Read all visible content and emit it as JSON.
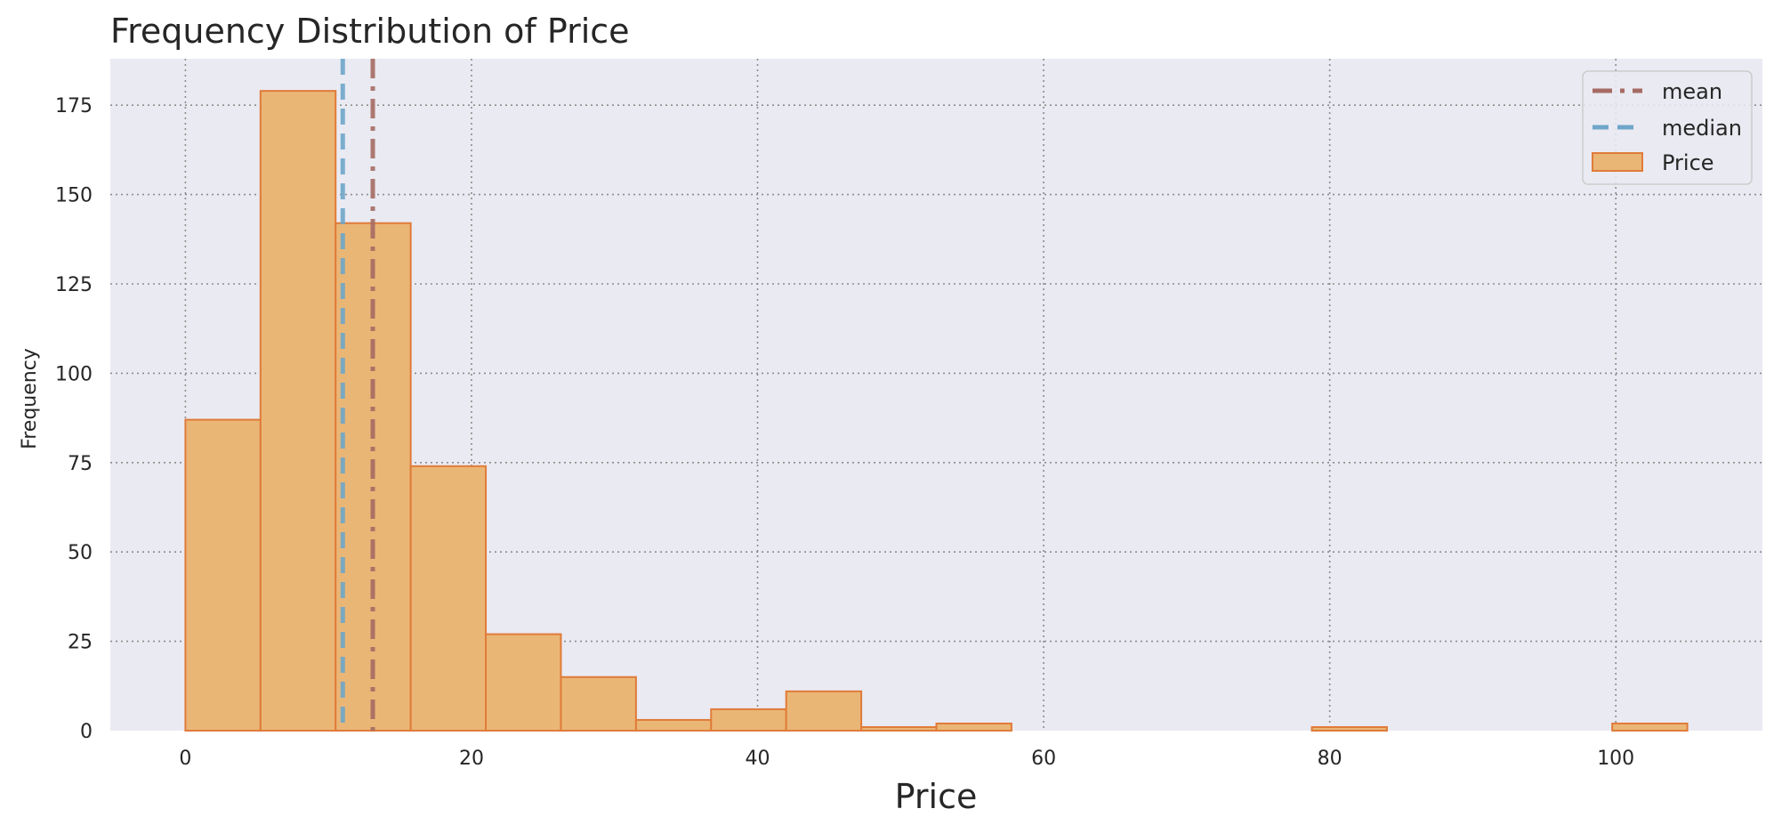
{
  "chart_data": {
    "type": "bar",
    "title": "Frequency Distribution of Price",
    "xlabel": "Price",
    "ylabel": "Frequency",
    "xlim": [
      -5.25,
      110.25
    ],
    "ylim": [
      0,
      188
    ],
    "xticks": [
      0,
      20,
      40,
      60,
      80,
      100
    ],
    "yticks": [
      0,
      25,
      50,
      75,
      100,
      125,
      150,
      175
    ],
    "grid": true,
    "grid_style": "dotted",
    "legend_position": "top-right",
    "bins": [
      {
        "x0": 0.0,
        "x1": 5.25,
        "count": 87
      },
      {
        "x0": 5.25,
        "x1": 10.5,
        "count": 179
      },
      {
        "x0": 10.5,
        "x1": 15.75,
        "count": 142
      },
      {
        "x0": 15.75,
        "x1": 21.0,
        "count": 74
      },
      {
        "x0": 21.0,
        "x1": 26.25,
        "count": 27
      },
      {
        "x0": 26.25,
        "x1": 31.5,
        "count": 15
      },
      {
        "x0": 31.5,
        "x1": 36.75,
        "count": 3
      },
      {
        "x0": 36.75,
        "x1": 42.0,
        "count": 6
      },
      {
        "x0": 42.0,
        "x1": 47.25,
        "count": 11
      },
      {
        "x0": 47.25,
        "x1": 52.5,
        "count": 1
      },
      {
        "x0": 52.5,
        "x1": 57.75,
        "count": 2
      },
      {
        "x0": 57.75,
        "x1": 63.0,
        "count": 0
      },
      {
        "x0": 63.0,
        "x1": 68.25,
        "count": 0
      },
      {
        "x0": 68.25,
        "x1": 73.5,
        "count": 0
      },
      {
        "x0": 73.5,
        "x1": 78.75,
        "count": 0
      },
      {
        "x0": 78.75,
        "x1": 84.0,
        "count": 1
      },
      {
        "x0": 84.0,
        "x1": 89.25,
        "count": 0
      },
      {
        "x0": 89.25,
        "x1": 94.5,
        "count": 0
      },
      {
        "x0": 94.5,
        "x1": 99.75,
        "count": 0
      },
      {
        "x0": 99.75,
        "x1": 105.0,
        "count": 2
      }
    ],
    "reference_lines": [
      {
        "name": "mean",
        "x": 13.1,
        "color": "#a56b63",
        "dash": "dashdot"
      },
      {
        "name": "median",
        "x": 11.0,
        "color": "#6fa6c9",
        "dash": "dashed"
      }
    ],
    "legend": [
      {
        "label": "mean",
        "kind": "line",
        "color": "#a56b63",
        "dash": "dashdot"
      },
      {
        "label": "median",
        "kind": "line",
        "color": "#6fa6c9",
        "dash": "dashed"
      },
      {
        "label": "Price",
        "kind": "patch",
        "color": "#eab676",
        "edge": "#e07b39"
      }
    ],
    "colors": {
      "bar_fill": "#eab676",
      "bar_edge": "#e07b39",
      "plot_background": "#eaeaf2",
      "grid": "#8c8c8c"
    }
  }
}
